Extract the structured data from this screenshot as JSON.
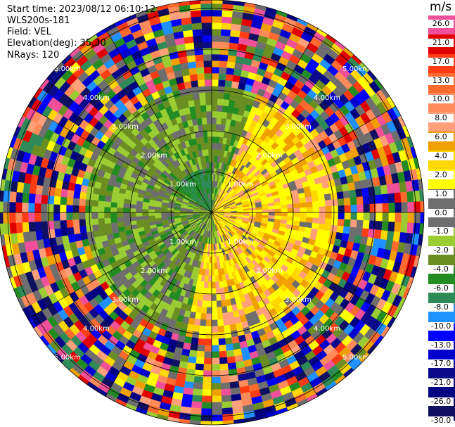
{
  "header": {
    "start_time": "Start time: 2023/08/12 06:10:12",
    "instrument": "WLS200s-181",
    "field": "Field: VEL",
    "elevation": "Elevation(deg): 35.30",
    "nrays": "NRays: 120"
  },
  "colorbar": {
    "unit": "m/s",
    "ticks": [
      "26.0",
      "21.0",
      "17.0",
      "13.0",
      "10.0",
      "8.0",
      "6.0",
      "4.0",
      "2.0",
      "1.0",
      "0.0",
      "-1.0",
      "-2.0",
      "-4.0",
      "-6.0",
      "-8.0",
      "-10.0",
      "-13.0",
      "-17.0",
      "-21.0",
      "-26.0",
      "-30.0"
    ],
    "colors": [
      "#f0509a",
      "#e00000",
      "#ff3c14",
      "#ff6a2e",
      "#ff8a5a",
      "#ffa07a",
      "#f0a000",
      "#ffd700",
      "#ffff00",
      "#6e6e6e",
      "#6e6e6e",
      "#9acd32",
      "#6b8e23",
      "#228b22",
      "#2e8b57",
      "#1e90ff",
      "#0000ff",
      "#0000cd",
      "#0a0a8a",
      "#000080",
      "#101060"
    ]
  },
  "chart_data": {
    "type": "ppi",
    "field": "VEL",
    "units": "m/s",
    "elevation_deg": 35.3,
    "n_rays": 120,
    "range_ring_labels_km": [
      "1.00km",
      "2.00km",
      "3.00km",
      "4.00km",
      "5.00km"
    ],
    "range_rings_km": [
      1,
      2,
      3,
      4,
      5
    ],
    "max_range_km": 5.0,
    "color_levels": [
      26.0,
      21.0,
      17.0,
      13.0,
      10.0,
      8.0,
      6.0,
      4.0,
      2.0,
      1.0,
      0.0,
      -1.0,
      -2.0,
      -4.0,
      -6.0,
      -8.0,
      -10.0,
      -13.0,
      -17.0,
      -21.0,
      -26.0,
      -30.0
    ],
    "spoke_azimuths_deg": [
      0,
      30,
      60,
      90,
      120,
      150,
      180,
      210,
      240,
      270,
      300,
      330
    ]
  }
}
